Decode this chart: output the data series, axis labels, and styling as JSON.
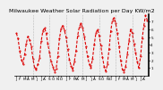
{
  "title": "Milwaukee Weather Solar Radiation per Day KW/m2",
  "background_color": "#f0f0f0",
  "line_color": "#dd0000",
  "ylim": [
    0,
    8
  ],
  "yticks": [
    1,
    2,
    3,
    4,
    5,
    6,
    7
  ],
  "values": [
    5.5,
    4.8,
    3.2,
    2.1,
    1.5,
    2.8,
    4.2,
    5.1,
    4.6,
    3.8,
    2.2,
    1.0,
    0.8,
    1.5,
    2.3,
    4.5,
    5.8,
    6.2,
    5.5,
    4.1,
    3.0,
    1.8,
    1.2,
    0.5,
    0.9,
    2.5,
    4.8,
    6.1,
    6.5,
    5.9,
    5.0,
    3.5,
    2.1,
    1.3,
    0.7,
    1.8,
    3.2,
    5.2,
    6.3,
    6.8,
    6.2,
    5.1,
    3.8,
    2.5,
    1.5,
    1.0,
    2.2,
    4.0,
    5.5,
    6.0,
    5.2,
    3.9,
    2.4,
    1.2,
    0.6,
    1.5,
    3.5,
    5.8,
    7.2,
    7.5,
    6.8,
    5.5,
    3.8,
    2.0,
    0.8,
    0.5,
    1.2,
    2.8,
    4.5,
    6.0,
    5.5,
    4.2,
    3.0,
    1.8,
    1.0,
    2.5,
    4.8,
    6.5,
    7.8,
    7.2
  ],
  "vline_positions": [
    10,
    20,
    30,
    40,
    50,
    60,
    70
  ],
  "xtick_positions": [
    0,
    2,
    5,
    7,
    10,
    12,
    15,
    17,
    20,
    22,
    25,
    27,
    30,
    32,
    35,
    37,
    40,
    42,
    45,
    47,
    50,
    52,
    55,
    57,
    60,
    62,
    65,
    67,
    70,
    72,
    75,
    77
  ],
  "xtick_labels": [
    "J",
    "F",
    "M",
    "A",
    "M",
    "J",
    "J",
    "A",
    "S",
    "O",
    "N",
    "D",
    "J",
    "F",
    "M",
    "A",
    "M",
    "J",
    "J",
    "A",
    "S",
    "O",
    "N",
    "D",
    "J",
    "F",
    "M",
    "A",
    "M",
    "J",
    "J",
    "A"
  ],
  "title_fontsize": 4.5,
  "tick_fontsize": 3.0
}
